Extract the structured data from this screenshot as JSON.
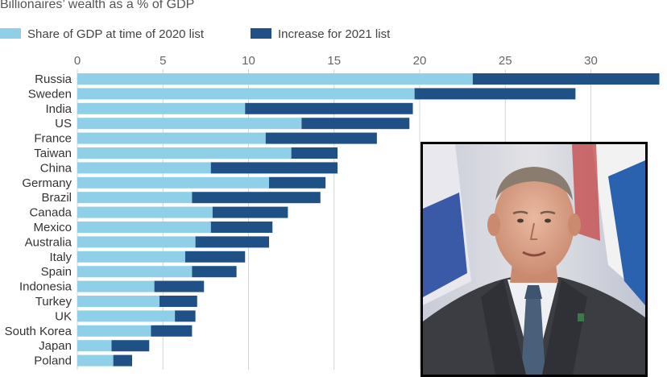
{
  "chart_data": {
    "type": "bar",
    "stacked": true,
    "orientation": "horizontal",
    "title": "Billionaires’ wealth as a % of GDP",
    "xlabel": "",
    "ylabel": "",
    "xlim": [
      0,
      34
    ],
    "x_ticks": [
      0,
      5,
      10,
      15,
      20,
      25,
      30
    ],
    "grid": true,
    "legend_position": "top-left",
    "categories": [
      "Russia",
      "Sweden",
      "India",
      "US",
      "France",
      "Taiwan",
      "China",
      "Germany",
      "Brazil",
      "Canada",
      "Mexico",
      "Australia",
      "Italy",
      "Spain",
      "Indonesia",
      "Turkey",
      "UK",
      "South Korea",
      "Japan",
      "Poland"
    ],
    "series": [
      {
        "name": "Share of GDP at time of 2020 list",
        "color": "#8fd0e8",
        "values": [
          23.1,
          19.7,
          9.8,
          13.1,
          11.0,
          12.5,
          7.8,
          11.2,
          6.7,
          7.9,
          7.8,
          6.9,
          6.3,
          6.7,
          4.5,
          4.8,
          5.7,
          4.3,
          2.0,
          2.1
        ]
      },
      {
        "name": "Increase for 2021 list",
        "color": "#1f5186",
        "values": [
          10.9,
          9.4,
          9.8,
          6.3,
          6.5,
          2.7,
          7.4,
          3.3,
          7.5,
          4.4,
          3.6,
          4.3,
          3.5,
          2.6,
          2.9,
          2.2,
          1.2,
          2.4,
          2.2,
          1.1
        ]
      }
    ]
  },
  "photo": {
    "icon": "portrait-photo"
  }
}
